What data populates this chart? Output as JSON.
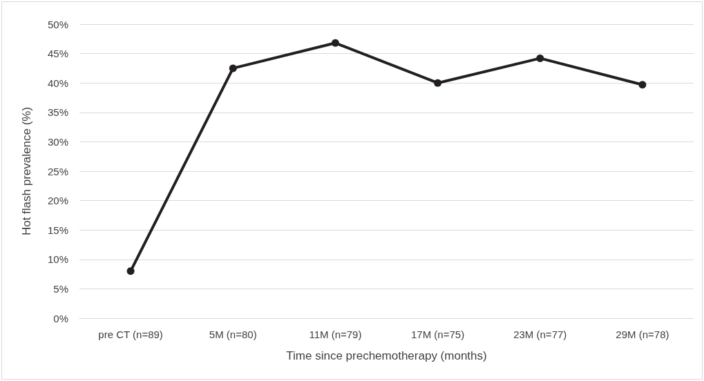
{
  "chart_data": {
    "type": "line",
    "xlabel": "Time since prechemotherapy (months)",
    "ylabel": "Hot flash prevalence (%)",
    "categories": [
      "pre CT (n=89)",
      "5M (n=80)",
      "11M (n=79)",
      "17M (n=75)",
      "23M (n=77)",
      "29M (n=78)"
    ],
    "series": [
      {
        "color": "#231f20",
        "values": [
          8,
          42.5,
          46.8,
          40,
          44.2,
          39.7
        ]
      }
    ],
    "ylim": [
      0,
      50
    ],
    "yticks": [
      {
        "value": 0,
        "label": "0%"
      },
      {
        "value": 5,
        "label": "5%"
      },
      {
        "value": 10,
        "label": "10%"
      },
      {
        "value": 15,
        "label": "15%"
      },
      {
        "value": 20,
        "label": "20%"
      },
      {
        "value": 25,
        "label": "25%"
      },
      {
        "value": 30,
        "label": "30%"
      },
      {
        "value": 35,
        "label": "35%"
      },
      {
        "value": 40,
        "label": "40%"
      },
      {
        "value": 45,
        "label": "45%"
      },
      {
        "value": 50,
        "label": "50%"
      }
    ],
    "grid": "y",
    "marker": "circle",
    "line_style": "solid"
  }
}
